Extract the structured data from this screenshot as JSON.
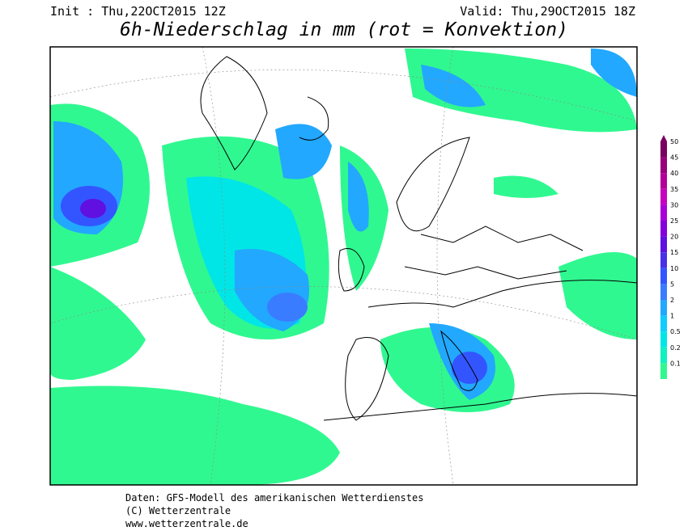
{
  "header": {
    "init": "Init : Thu,22OCT2015 12Z",
    "valid": "Valid: Thu,29OCT2015 18Z",
    "title": "6h-Niederschlag in mm (rot = Konvektion)"
  },
  "legend": {
    "items": [
      {
        "label": "50",
        "color": "#7a0060"
      },
      {
        "label": "45",
        "color": "#99007a"
      },
      {
        "label": "40",
        "color": "#b4009a"
      },
      {
        "label": "35",
        "color": "#c800c0"
      },
      {
        "label": "30",
        "color": "#a800d8"
      },
      {
        "label": "25",
        "color": "#8400dc"
      },
      {
        "label": "20",
        "color": "#6010e0"
      },
      {
        "label": "15",
        "color": "#4830e8"
      },
      {
        "label": "10",
        "color": "#3355ff"
      },
      {
        "label": "5",
        "color": "#3a7cff"
      },
      {
        "label": "2",
        "color": "#22a8ff"
      },
      {
        "label": "1",
        "color": "#10ccff"
      },
      {
        "label": "0.5",
        "color": "#00e6e6"
      },
      {
        "label": "0.2",
        "color": "#10f0c0"
      },
      {
        "label": "0.1",
        "color": "#30f890"
      }
    ]
  },
  "footer": {
    "lines": [
      "Daten: GFS-Modell des amerikanischen Wetterdienstes",
      "(C) Wetterzentrale",
      "www.wetterzentrale.de"
    ]
  }
}
